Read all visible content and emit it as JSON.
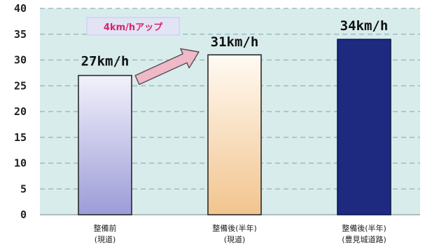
{
  "chart_data": {
    "type": "bar",
    "title": "",
    "xlabel": "",
    "ylabel": "",
    "ylim": [
      0,
      40
    ],
    "yticks": [
      0,
      5,
      10,
      15,
      20,
      25,
      30,
      35,
      40
    ],
    "grid": true,
    "categories": [
      [
        "整備前",
        "(現道)"
      ],
      [
        "整備後(半年)",
        "(現道)"
      ],
      [
        "整備後(半年)",
        "(豊見城道路)"
      ]
    ],
    "values": [
      27,
      31,
      34
    ],
    "data_labels": [
      "27km/h",
      "31km/h",
      "34km/h"
    ],
    "annotation": "4km/hアップ",
    "colors": {
      "plot_bg": "#d8ecec",
      "grid": "#8fb3b6",
      "bar1_top": "#f2f1fb",
      "bar1_bottom": "#9c9cd8",
      "bar2_top": "#fffaf2",
      "bar2_bottom": "#f2c48f",
      "bar3": "#1d2a80",
      "arrow": "#efb9c7",
      "annotation_text": "#d8246a",
      "annotation_bg": "#e3e3f6"
    }
  }
}
